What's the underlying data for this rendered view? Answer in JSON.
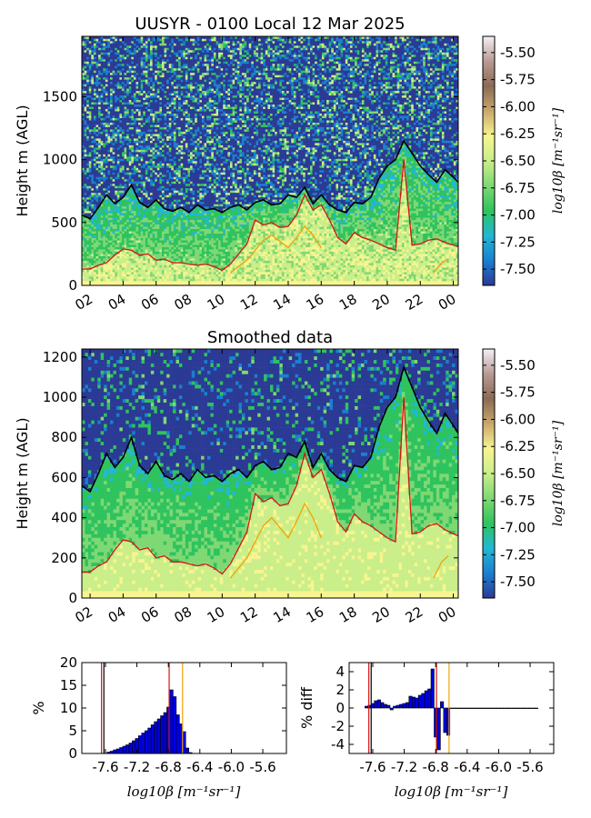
{
  "colors": {
    "colormap": [
      "#2b3a94",
      "#1a7fd0",
      "#22b7d4",
      "#2ec35e",
      "#7fd873",
      "#c9ee8a",
      "#f7f58f",
      "#c9a86a",
      "#8a6b55",
      "#b89a94",
      "#f5f0f5"
    ],
    "red_line": "#d51515",
    "orange_line": "#f2a20a",
    "black_line": "#000000",
    "bar": "#0000e0"
  },
  "colorbar": {
    "ticks": [
      "-5.50",
      "-5.75",
      "-6.00",
      "-6.25",
      "-6.50",
      "-6.75",
      "-7.00",
      "-7.25",
      "-7.50"
    ],
    "label": "log10β [m⁻¹sr⁻¹]",
    "range": [
      -7.65,
      -5.35
    ]
  },
  "chart_data": [
    {
      "type": "heatmap",
      "title": "UUSYR - 0100 Local 12 Mar 2025",
      "ylabel": "Height m (AGL)",
      "xlabel": "",
      "x_ticks": [
        "02",
        "04",
        "06",
        "08",
        "10",
        "12",
        "14",
        "16",
        "18",
        "20",
        "22",
        "00"
      ],
      "x_tick_hours": [
        2,
        4,
        6,
        8,
        10,
        12,
        14,
        16,
        18,
        20,
        22,
        24
      ],
      "xlim_hours": [
        1.5,
        24.3
      ],
      "y_ticks": [
        "0",
        "500",
        "1000",
        "1500"
      ],
      "y_tick_values": [
        0,
        500,
        1000,
        1500
      ],
      "ylim": [
        0,
        1980
      ],
      "series": [
        {
          "color": "black",
          "x": [
            1.5,
            2,
            2.5,
            3,
            3.5,
            4,
            4.5,
            5,
            5.5,
            6,
            6.5,
            7,
            7.5,
            8,
            8.5,
            9,
            9.5,
            10,
            10.5,
            11,
            11.5,
            12,
            12.5,
            13,
            13.5,
            14,
            14.5,
            15,
            15.5,
            16,
            16.5,
            17,
            17.5,
            18,
            18.5,
            19,
            19.5,
            20,
            20.5,
            21,
            21.5,
            22,
            22.5,
            23,
            23.5,
            24,
            24.3
          ],
          "y": [
            560,
            530,
            620,
            720,
            650,
            700,
            800,
            660,
            620,
            680,
            610,
            590,
            620,
            580,
            640,
            600,
            610,
            580,
            620,
            640,
            600,
            660,
            680,
            640,
            650,
            720,
            700,
            780,
            650,
            720,
            640,
            600,
            580,
            660,
            650,
            700,
            850,
            950,
            1000,
            1150,
            1050,
            950,
            880,
            820,
            920,
            860,
            820
          ]
        },
        {
          "color": "red",
          "x": [
            1.5,
            2,
            2.5,
            3,
            3.5,
            4,
            4.5,
            5,
            5.5,
            6,
            6.5,
            7,
            7.5,
            8,
            8.5,
            9,
            9.5,
            10,
            10.5,
            11,
            11.5,
            12,
            12.5,
            13,
            13.5,
            14,
            14.5,
            15,
            15.5,
            16,
            16.5,
            17,
            17.5,
            18,
            18.5,
            19,
            19.5,
            20,
            20.5,
            21,
            21.5,
            22,
            22.5,
            23,
            23.5,
            24,
            24.3
          ],
          "y": [
            130,
            130,
            160,
            180,
            240,
            290,
            280,
            240,
            250,
            200,
            210,
            180,
            180,
            170,
            160,
            170,
            150,
            120,
            170,
            250,
            330,
            520,
            480,
            500,
            460,
            470,
            560,
            720,
            600,
            640,
            520,
            380,
            330,
            420,
            380,
            360,
            330,
            300,
            280,
            1000,
            320,
            330,
            360,
            370,
            340,
            320,
            310
          ]
        },
        {
          "color": "orange",
          "x": [
            10.5,
            11,
            11.5,
            12,
            12.5,
            13,
            13.5,
            14,
            14.5,
            15,
            15.5,
            16,
            null,
            22.8,
            23.3,
            23.7
          ],
          "y": [
            100,
            150,
            200,
            280,
            360,
            400,
            350,
            300,
            380,
            470,
            400,
            300,
            null,
            100,
            180,
            210
          ]
        }
      ]
    },
    {
      "type": "heatmap",
      "title": "Smoothed data",
      "ylabel": "Height m (AGL)",
      "xlabel": "",
      "x_ticks": [
        "02",
        "04",
        "06",
        "08",
        "10",
        "12",
        "14",
        "16",
        "18",
        "20",
        "22",
        "00"
      ],
      "x_tick_hours": [
        2,
        4,
        6,
        8,
        10,
        12,
        14,
        16,
        18,
        20,
        22,
        24
      ],
      "xlim_hours": [
        1.5,
        24.3
      ],
      "y_ticks": [
        "0",
        "200",
        "400",
        "600",
        "800",
        "1000",
        "1200"
      ],
      "y_tick_values": [
        0,
        200,
        400,
        600,
        800,
        1000,
        1200
      ],
      "ylim": [
        0,
        1240
      ],
      "series": [
        {
          "color": "black",
          "x": [
            1.5,
            2,
            2.5,
            3,
            3.5,
            4,
            4.5,
            5,
            5.5,
            6,
            6.5,
            7,
            7.5,
            8,
            8.5,
            9,
            9.5,
            10,
            10.5,
            11,
            11.5,
            12,
            12.5,
            13,
            13.5,
            14,
            14.5,
            15,
            15.5,
            16,
            16.5,
            17,
            17.5,
            18,
            18.5,
            19,
            19.5,
            20,
            20.5,
            21,
            21.5,
            22,
            22.5,
            23,
            23.5,
            24,
            24.3
          ],
          "y": [
            560,
            530,
            620,
            720,
            650,
            700,
            800,
            660,
            620,
            680,
            610,
            590,
            620,
            580,
            640,
            600,
            610,
            580,
            620,
            640,
            600,
            660,
            680,
            640,
            650,
            720,
            700,
            780,
            650,
            720,
            640,
            600,
            580,
            660,
            650,
            700,
            850,
            950,
            1000,
            1150,
            1050,
            950,
            880,
            820,
            920,
            860,
            820
          ]
        },
        {
          "color": "red",
          "x": [
            1.5,
            2,
            2.5,
            3,
            3.5,
            4,
            4.5,
            5,
            5.5,
            6,
            6.5,
            7,
            7.5,
            8,
            8.5,
            9,
            9.5,
            10,
            10.5,
            11,
            11.5,
            12,
            12.5,
            13,
            13.5,
            14,
            14.5,
            15,
            15.5,
            16,
            16.5,
            17,
            17.5,
            18,
            18.5,
            19,
            19.5,
            20,
            20.5,
            21,
            21.5,
            22,
            22.5,
            23,
            23.5,
            24,
            24.3
          ],
          "y": [
            130,
            130,
            160,
            180,
            240,
            290,
            280,
            240,
            250,
            200,
            210,
            180,
            180,
            170,
            160,
            170,
            150,
            120,
            170,
            250,
            330,
            520,
            480,
            500,
            460,
            470,
            560,
            720,
            600,
            640,
            520,
            380,
            330,
            420,
            380,
            360,
            330,
            300,
            280,
            1000,
            320,
            330,
            360,
            370,
            340,
            320,
            310
          ]
        },
        {
          "color": "orange",
          "x": [
            10.5,
            11,
            11.5,
            12,
            12.5,
            13,
            13.5,
            14,
            14.5,
            15,
            15.5,
            16,
            null,
            22.8,
            23.3,
            23.7
          ],
          "y": [
            100,
            150,
            200,
            280,
            360,
            400,
            350,
            300,
            380,
            470,
            400,
            300,
            null,
            100,
            180,
            210
          ]
        }
      ]
    },
    {
      "type": "bar",
      "title": "",
      "ylabel": "%",
      "xlabel": "log10β [m⁻¹sr⁻¹]",
      "x_ticks": [
        "-7.6",
        "-7.2",
        "-6.8",
        "-6.4",
        "-6.0",
        "-5.6"
      ],
      "x_tick_values": [
        -7.6,
        -7.2,
        -6.8,
        -6.4,
        -6.0,
        -5.6
      ],
      "xlim": [
        -7.9,
        -5.3
      ],
      "y_ticks": [
        "0",
        "5",
        "10",
        "15",
        "20"
      ],
      "y_tick_values": [
        0,
        5,
        10,
        15,
        20
      ],
      "ylim": [
        0,
        20
      ],
      "bin_width": 0.04,
      "bins_x": [
        -7.58,
        -7.54,
        -7.5,
        -7.46,
        -7.42,
        -7.38,
        -7.34,
        -7.3,
        -7.26,
        -7.22,
        -7.18,
        -7.14,
        -7.1,
        -7.06,
        -7.02,
        -6.98,
        -6.94,
        -6.9,
        -6.86,
        -6.82,
        -6.78,
        -6.74,
        -6.7,
        -6.66,
        -6.62,
        -6.58,
        -6.54
      ],
      "values": [
        0.3,
        0.5,
        0.8,
        1.0,
        1.3,
        1.6,
        1.9,
        2.3,
        2.8,
        3.3,
        3.9,
        4.5,
        5.0,
        5.6,
        6.3,
        7.0,
        7.6,
        8.3,
        9.0,
        10.2,
        14.0,
        12.5,
        8.5,
        6.5,
        4.8,
        1.2,
        0.2
      ],
      "vlines": [
        {
          "color": "black",
          "x": -7.62
        },
        {
          "color": "red",
          "x": -7.65
        },
        {
          "color": "red",
          "x": -6.79
        },
        {
          "color": "orange",
          "x": -6.62
        }
      ]
    },
    {
      "type": "bar",
      "title": "",
      "ylabel": "% diff",
      "xlabel": "log10β [m⁻¹sr⁻¹]",
      "x_ticks": [
        "-7.6",
        "-7.2",
        "-6.8",
        "-6.4",
        "-6.0",
        "-5.6"
      ],
      "x_tick_values": [
        -7.6,
        -7.2,
        -6.8,
        -6.4,
        -6.0,
        -5.6
      ],
      "xlim": [
        -7.9,
        -5.3
      ],
      "y_ticks": [
        "4",
        "2",
        "0",
        "-2",
        "-4"
      ],
      "y_tick_values": [
        4,
        2,
        0,
        -2,
        -4
      ],
      "ylim": [
        -5,
        5
      ],
      "bin_width": 0.04,
      "bins_x": [
        -7.7,
        -7.66,
        -7.62,
        -7.58,
        -7.54,
        -7.5,
        -7.46,
        -7.42,
        -7.38,
        -7.34,
        -7.3,
        -7.26,
        -7.22,
        -7.18,
        -7.14,
        -7.1,
        -7.06,
        -7.02,
        -6.98,
        -6.94,
        -6.9,
        -6.86,
        -6.82,
        -6.78,
        -6.74,
        -6.7,
        -6.66,
        -6.62,
        -6.58,
        -6.54,
        -6.5,
        -6.46,
        -6.42,
        -6.38,
        -6.34,
        -6.3,
        -6.26,
        -6.22,
        -6.18,
        -6.14,
        -6.1,
        -6.06,
        -6.02,
        -5.98,
        -5.94,
        -5.9,
        -5.86,
        -5.82,
        -5.78,
        -5.74,
        -5.7,
        -5.66,
        -5.62,
        -5.58,
        -5.54
      ],
      "values": [
        0.2,
        0.3,
        0.5,
        0.8,
        0.9,
        0.6,
        0.4,
        0.3,
        -0.2,
        0.2,
        0.3,
        0.4,
        0.5,
        0.6,
        1.3,
        1.2,
        1.1,
        1.4,
        1.6,
        1.9,
        2.1,
        4.3,
        -3.2,
        -4.6,
        0.7,
        -2.7,
        -3.0,
        0.0,
        0.0,
        0.0,
        0.0,
        0.0,
        0.0,
        0.0,
        0.0,
        0.0,
        0.0,
        0.0,
        0.0,
        0.0,
        0.0,
        0.0,
        0.0,
        0.0,
        0.0,
        0.0,
        0.0,
        0.0,
        0.0,
        0.0,
        0.0,
        0.0,
        0.0,
        0.0,
        0.0
      ],
      "vlines": [
        {
          "color": "black",
          "x": -7.62
        },
        {
          "color": "red",
          "x": -7.65
        },
        {
          "color": "red",
          "x": -6.79
        },
        {
          "color": "orange",
          "x": -6.63
        }
      ]
    }
  ]
}
